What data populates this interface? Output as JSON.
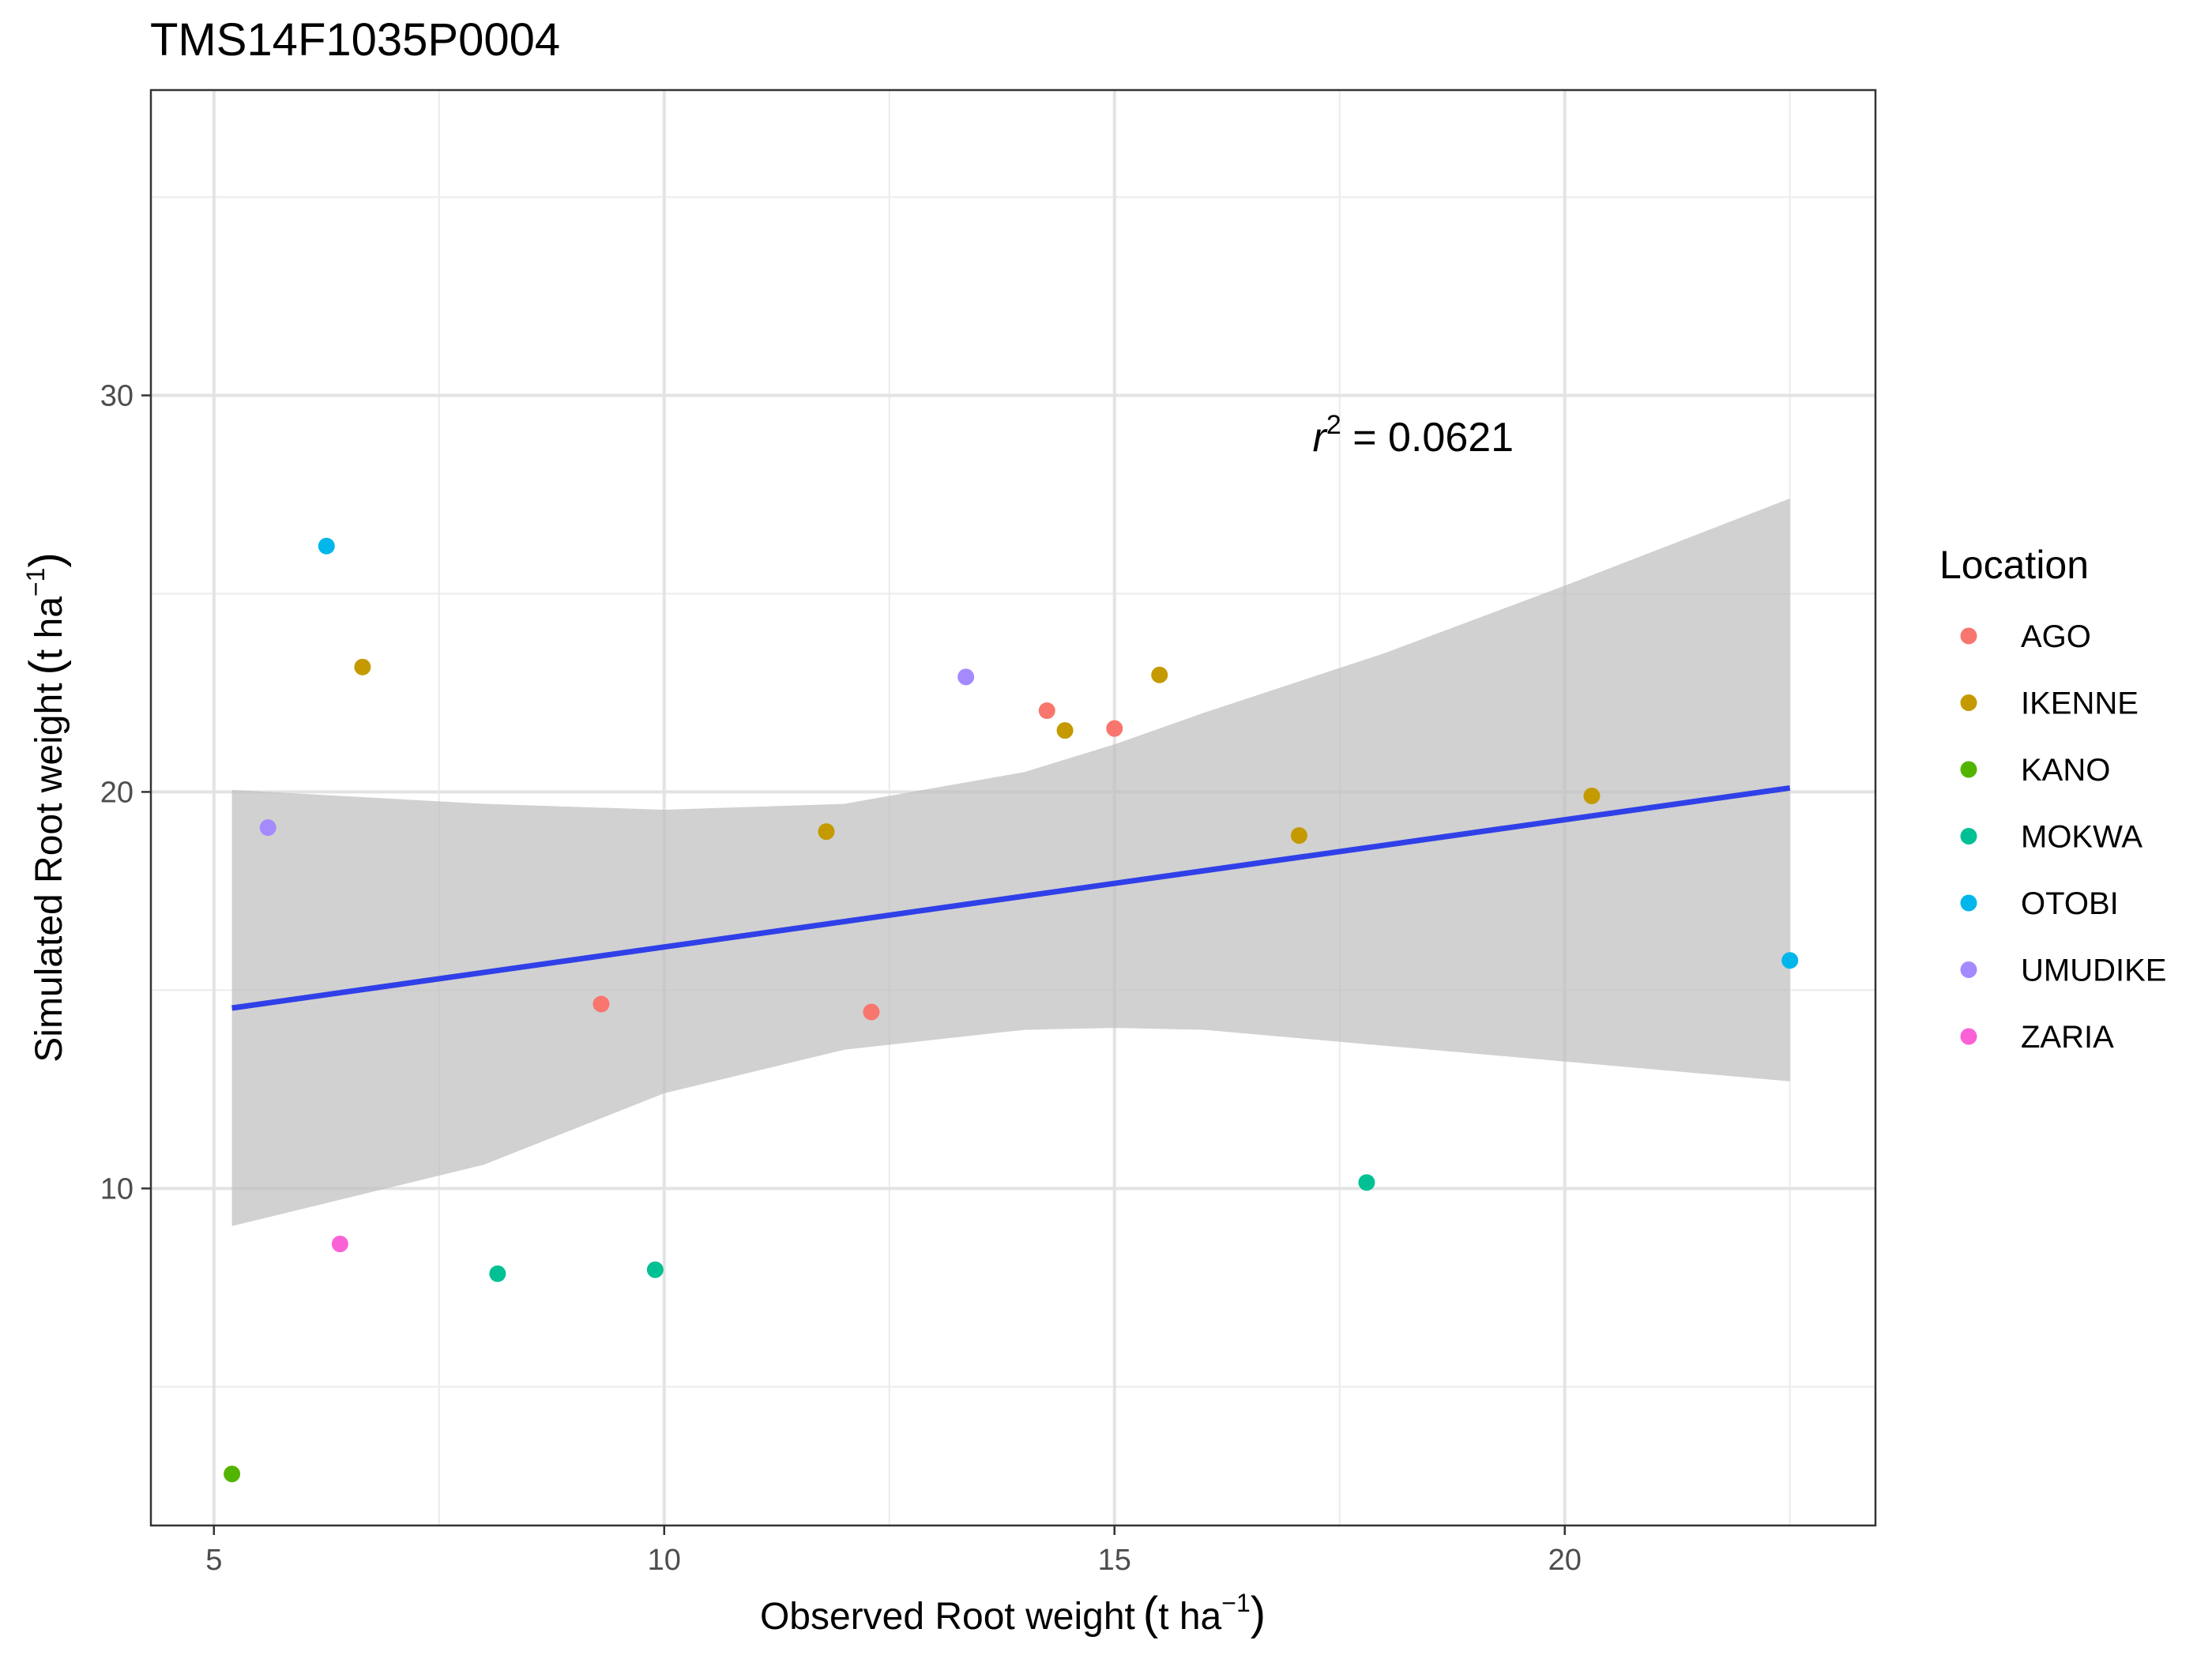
{
  "chart_data": {
    "type": "scatter",
    "title": "TMS14F1035P0004",
    "xlabel_main": "Observed Root weight",
    "ylabel_main": "Simulated Root weight",
    "unit": {
      "open": "(",
      "t": "t ha",
      "sup": "−1",
      "close": ")"
    },
    "xlim": [
      4.3,
      23.45
    ],
    "ylim": [
      1.5,
      37.7
    ],
    "x_ticks": [
      5,
      10,
      15,
      20
    ],
    "y_ticks": [
      10,
      20,
      30
    ],
    "x_tick_labels": [
      "5",
      "10",
      "15",
      "20"
    ],
    "y_tick_labels": [
      "10",
      "20",
      "30"
    ],
    "grid": true,
    "legend": {
      "title": "Location",
      "position": "right",
      "entries": [
        {
          "name": "AGO",
          "color": "#F8766D"
        },
        {
          "name": "IKENNE",
          "color": "#C49A00"
        },
        {
          "name": "KANO",
          "color": "#53B400"
        },
        {
          "name": "MOKWA",
          "color": "#00C094"
        },
        {
          "name": "OTOBI",
          "color": "#00B6EB"
        },
        {
          "name": "UMUDIKE",
          "color": "#A58AFF"
        },
        {
          "name": "ZARIA",
          "color": "#FB61D7"
        }
      ]
    },
    "points": [
      {
        "location": "OTOBI",
        "x": 6.25,
        "y": 26.2
      },
      {
        "location": "IKENNE",
        "x": 6.65,
        "y": 23.15
      },
      {
        "location": "UMUDIKE",
        "x": 5.6,
        "y": 19.1
      },
      {
        "location": "ZARIA",
        "x": 6.4,
        "y": 8.6
      },
      {
        "location": "KANO",
        "x": 5.2,
        "y": 2.8
      },
      {
        "location": "MOKWA",
        "x": 8.15,
        "y": 7.85
      },
      {
        "location": "AGO",
        "x": 9.3,
        "y": 14.65
      },
      {
        "location": "MOKWA",
        "x": 9.9,
        "y": 7.95
      },
      {
        "location": "IKENNE",
        "x": 11.8,
        "y": 19.0
      },
      {
        "location": "AGO",
        "x": 12.3,
        "y": 14.45
      },
      {
        "location": "UMUDIKE",
        "x": 13.35,
        "y": 22.9
      },
      {
        "location": "AGO",
        "x": 14.25,
        "y": 22.05
      },
      {
        "location": "IKENNE",
        "x": 14.45,
        "y": 21.55
      },
      {
        "location": "AGO",
        "x": 15.0,
        "y": 21.6
      },
      {
        "location": "IKENNE",
        "x": 15.5,
        "y": 22.95
      },
      {
        "location": "IKENNE",
        "x": 17.05,
        "y": 18.9
      },
      {
        "location": "MOKWA",
        "x": 17.8,
        "y": 10.15
      },
      {
        "location": "IKENNE",
        "x": 20.3,
        "y": 19.9
      },
      {
        "location": "OTOBI",
        "x": 22.5,
        "y": 15.75
      }
    ],
    "fit_line": {
      "color": "#3040E8",
      "x": [
        5.2,
        22.5
      ],
      "y": [
        14.55,
        20.1
      ]
    },
    "confidence_band": {
      "color": "#bdbdbd",
      "x": [
        5.2,
        8.0,
        10.0,
        12.0,
        14.0,
        15.0,
        16.0,
        18.0,
        20.0,
        22.5
      ],
      "upper": [
        20.05,
        19.7,
        19.55,
        19.7,
        20.5,
        21.2,
        22.0,
        23.5,
        25.2,
        27.4
      ],
      "lower": [
        9.05,
        10.6,
        12.4,
        13.5,
        14.0,
        14.05,
        14.0,
        13.6,
        13.2,
        12.7
      ]
    },
    "annotation": {
      "r": "r",
      "sup": "2",
      "rest": " = 0.0621",
      "x": 17.2,
      "y": 28.6
    }
  }
}
